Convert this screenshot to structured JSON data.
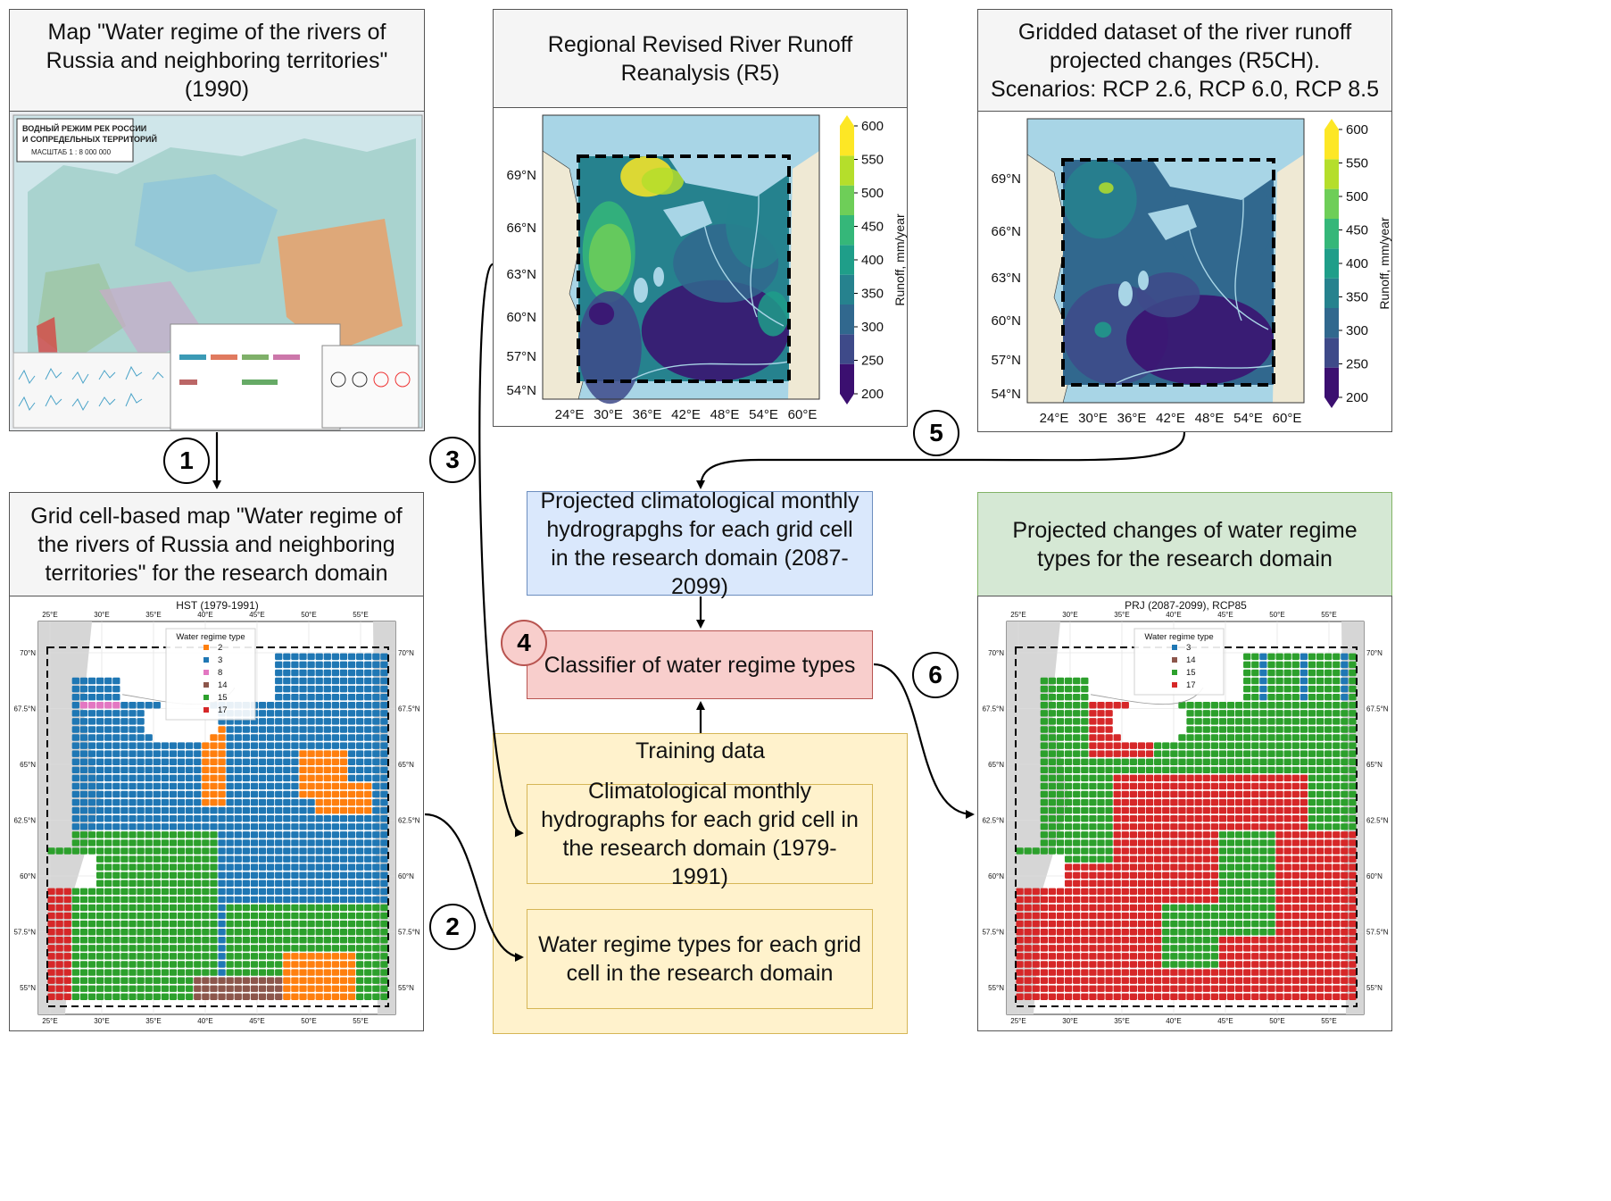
{
  "boxes": {
    "map1990_title": "Map \"Water regime of the rivers of Russia and neighboring territories\" (1990)",
    "r5_title": "Regional Revised River Runoff Reanalysis (R5)",
    "r5ch_title": "Gridded dataset of the river runoff projected changes (R5CH).",
    "r5ch_subtitle": "Scenarios: RCP 2.6, RCP 6.0, RCP 8.5",
    "gridmap_title": "Grid cell-based map \"Water regime of the rivers of Russia and neighboring territories\" for the research domain",
    "projected_hydro": "Projected climatological monthly hydrograpghs for each grid cell in the research domain (2087-2099)",
    "classifier": "Classifier of water regime types",
    "training_title": "Training data",
    "clim_hydro": "Climatological monthly hydrographs for each grid cell in the research domain (1979-1991)",
    "regime_types": "Water regime types for each grid cell in the research domain",
    "projected_changes": "Projected changes of water regime types for the research domain"
  },
  "steps": [
    "1",
    "2",
    "3",
    "4",
    "5",
    "6"
  ],
  "scanned_map": {
    "header_line1": "ВОДНЫЙ РЕЖИМ РЕК РОССИИ",
    "header_line2": "И СОПРЕДЕЛЬНЫХ ТЕРРИТОРИЙ",
    "header_line3": "МАСШТАБ 1 : 8 000 000"
  },
  "runoff_maps": {
    "lat_ticks": [
      "69°N",
      "66°N",
      "63°N",
      "60°N",
      "57°N",
      "54°N"
    ],
    "lon_ticks": [
      "24°E",
      "30°E",
      "36°E",
      "42°E",
      "48°E",
      "54°E",
      "60°E"
    ],
    "colorbar_ticks": [
      "600",
      "550",
      "500",
      "450",
      "400",
      "350",
      "300",
      "250",
      "200"
    ],
    "colorbar_label": "Runoff, mm/year",
    "colors": [
      "#3b0f70",
      "#3e4a89",
      "#31688e",
      "#26828e",
      "#1f9e89",
      "#35b779",
      "#6ece58",
      "#b5de2b",
      "#fde725"
    ]
  },
  "regime_maps": {
    "hst_title": "HST (1979-1991)",
    "prj_title": "PRJ (2087-2099), RCP85",
    "legend_title": "Water regime type",
    "hst_legend": [
      {
        "label": "2",
        "color": "#ff7f0e"
      },
      {
        "label": "3",
        "color": "#1f77b4"
      },
      {
        "label": "8",
        "color": "#e377c2"
      },
      {
        "label": "14",
        "color": "#8c564b"
      },
      {
        "label": "15",
        "color": "#2ca02c"
      },
      {
        "label": "17",
        "color": "#d62728"
      }
    ],
    "prj_legend": [
      {
        "label": "3",
        "color": "#1f77b4"
      },
      {
        "label": "14",
        "color": "#8c564b"
      },
      {
        "label": "15",
        "color": "#2ca02c"
      },
      {
        "label": "17",
        "color": "#d62728"
      }
    ],
    "lon_ticks": [
      "25°E",
      "30°E",
      "35°E",
      "40°E",
      "45°E",
      "50°E",
      "55°E"
    ],
    "lat_ticks": [
      "70°N",
      "67.5°N",
      "65°N",
      "62.5°N",
      "60°N",
      "57.5°N",
      "55°N"
    ]
  }
}
